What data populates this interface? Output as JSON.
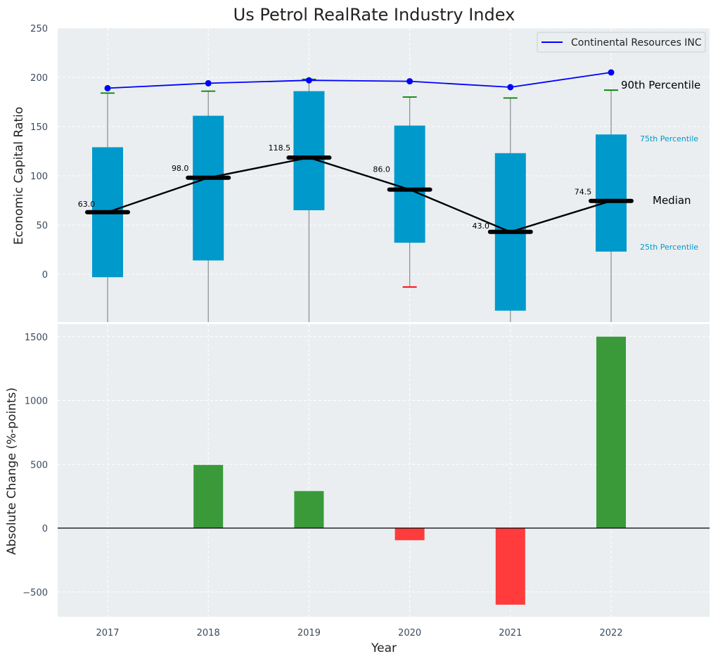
{
  "chart_data": [
    {
      "type": "box",
      "title": "Us Petrol RealRate Industry Index",
      "ylabel": "Economic Capital Ratio",
      "categories": [
        "2017",
        "2018",
        "2019",
        "2020",
        "2021",
        "2022"
      ],
      "ylim": [
        -50,
        250
      ],
      "yticks": [
        0,
        50,
        100,
        150,
        200,
        250
      ],
      "grid": true,
      "boxes": [
        {
          "q1": -3,
          "q3": 129,
          "median": 63.0,
          "whisker_low": -50,
          "whisker_high": 184
        },
        {
          "q1": 14,
          "q3": 161,
          "median": 98.0,
          "whisker_low": -50,
          "whisker_high": 186
        },
        {
          "q1": 65,
          "q3": 186,
          "median": 118.5,
          "whisker_low": -50,
          "whisker_high": 198
        },
        {
          "q1": 32,
          "q3": 151,
          "median": 86.0,
          "whisker_low": -13,
          "whisker_high": 180
        },
        {
          "q1": -37,
          "q3": 123,
          "median": 43.0,
          "whisker_low": -50,
          "whisker_high": 179
        },
        {
          "q1": 23,
          "q3": 142,
          "median": 74.5,
          "whisker_low": -50,
          "whisker_high": 187
        }
      ],
      "median_labels": [
        "63.0",
        "98.0",
        "118.5",
        "86.0",
        "43.0",
        "74.5"
      ],
      "series": [
        {
          "name": "Continental Resources INC",
          "values": [
            189,
            194,
            197,
            196,
            190,
            205
          ],
          "color": "#0000ff"
        }
      ],
      "legend": {
        "position": "top-right",
        "label": "Continental Resources INC"
      },
      "annotations": {
        "p90": "90th Percentile",
        "p75": "75th Percentile",
        "median": "Median",
        "p25": "25th Percentile"
      },
      "colors": {
        "box": "#0099cc",
        "whisker_cap_high": "#008000",
        "whisker_cap_low": "#ff0000",
        "median": "#000000"
      }
    },
    {
      "type": "bar",
      "ylabel": "Absolute Change (%-points)",
      "xlabel": "Year",
      "categories": [
        "2017",
        "2018",
        "2019",
        "2020",
        "2021",
        "2022"
      ],
      "values": [
        0,
        495,
        290,
        -95,
        -600,
        1500
      ],
      "ylim": [
        -700,
        1600
      ],
      "yticks": [
        -500,
        0,
        500,
        1000,
        1500
      ],
      "ytick_labels": [
        "−500",
        "0",
        "500",
        "1000",
        "1500"
      ],
      "colors": {
        "positive": "#3a9a3a",
        "negative": "#ff3b3b"
      }
    }
  ]
}
